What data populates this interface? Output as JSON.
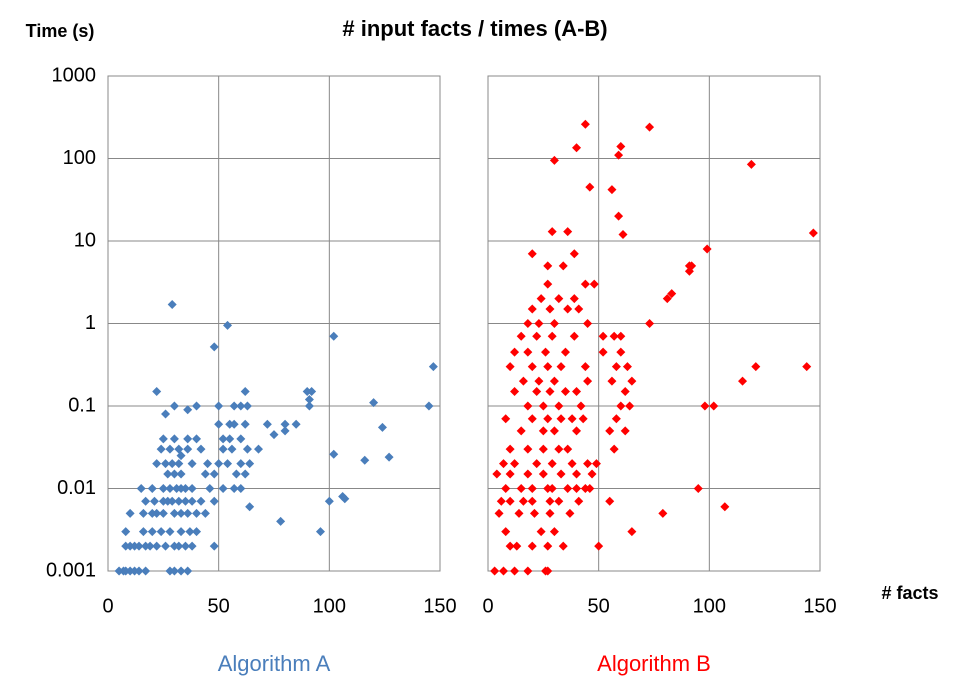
{
  "title": "# input facts / times (A-B)",
  "y_label": "Time (s)",
  "x_label": "# facts",
  "chart_data": [
    {
      "type": "scatter",
      "title": "Algorithm A",
      "color": "#4a7ebb",
      "log_y": true,
      "grid": true,
      "xlim": [
        0,
        150
      ],
      "xticks": [
        0,
        50,
        100,
        150
      ],
      "ylim": [
        0.001,
        1000
      ],
      "yticks": [
        0.001,
        0.01,
        0.1,
        1,
        10,
        100,
        1000
      ],
      "x": [
        5,
        7,
        8,
        10,
        12,
        14,
        17,
        28,
        30,
        33,
        36,
        8,
        10,
        12,
        14,
        17,
        19,
        22,
        26,
        30,
        32,
        35,
        38,
        48,
        8,
        16,
        20,
        24,
        28,
        33,
        37,
        40,
        10,
        16,
        20,
        22,
        25,
        30,
        33,
        36,
        40,
        44,
        17,
        21,
        25,
        27,
        29,
        32,
        35,
        38,
        42,
        48,
        15,
        20,
        25,
        28,
        31,
        33,
        35,
        38,
        46,
        52,
        57,
        60,
        27,
        30,
        33,
        44,
        48,
        58,
        62,
        22,
        26,
        29,
        32,
        38,
        45,
        50,
        54,
        60,
        64,
        24,
        28,
        32,
        36,
        42,
        52,
        56,
        63,
        68,
        25,
        30,
        36,
        40,
        52,
        55,
        60,
        50,
        55,
        57,
        62,
        72,
        80,
        85,
        30,
        40,
        50,
        57,
        60,
        63,
        91,
        22,
        62,
        90,
        29,
        54,
        48,
        102,
        147,
        92,
        91,
        120,
        145,
        124,
        102,
        116,
        127,
        106,
        107,
        100,
        96,
        78,
        64,
        75,
        80,
        26,
        36,
        33
      ],
      "values": [
        0.001,
        0.001,
        0.001,
        0.001,
        0.001,
        0.001,
        0.001,
        0.001,
        0.001,
        0.001,
        0.001,
        0.002,
        0.002,
        0.002,
        0.002,
        0.002,
        0.002,
        0.002,
        0.002,
        0.002,
        0.002,
        0.002,
        0.002,
        0.002,
        0.003,
        0.003,
        0.003,
        0.003,
        0.003,
        0.003,
        0.003,
        0.003,
        0.005,
        0.005,
        0.005,
        0.005,
        0.005,
        0.005,
        0.005,
        0.005,
        0.005,
        0.005,
        0.007,
        0.007,
        0.007,
        0.007,
        0.007,
        0.007,
        0.007,
        0.007,
        0.007,
        0.007,
        0.01,
        0.01,
        0.01,
        0.01,
        0.01,
        0.01,
        0.01,
        0.01,
        0.01,
        0.01,
        0.01,
        0.01,
        0.015,
        0.015,
        0.015,
        0.015,
        0.015,
        0.015,
        0.015,
        0.02,
        0.02,
        0.02,
        0.02,
        0.02,
        0.02,
        0.02,
        0.02,
        0.02,
        0.02,
        0.03,
        0.03,
        0.03,
        0.03,
        0.03,
        0.03,
        0.03,
        0.03,
        0.03,
        0.04,
        0.04,
        0.04,
        0.04,
        0.04,
        0.04,
        0.04,
        0.06,
        0.06,
        0.06,
        0.06,
        0.06,
        0.06,
        0.06,
        0.1,
        0.1,
        0.1,
        0.1,
        0.1,
        0.1,
        0.1,
        0.15,
        0.15,
        0.15,
        1.7,
        0.95,
        0.52,
        0.7,
        0.3,
        0.15,
        0.12,
        0.11,
        0.1,
        0.055,
        0.026,
        0.022,
        0.024,
        0.008,
        0.0075,
        0.007,
        0.003,
        0.004,
        0.006,
        0.045,
        0.05,
        0.08,
        0.09,
        0.025
      ]
    },
    {
      "type": "scatter",
      "title": "Algorithm B",
      "color": "#ff0000",
      "log_y": true,
      "grid": true,
      "sharey": true,
      "xlim": [
        0,
        150
      ],
      "xticks": [
        0,
        50,
        100,
        150
      ],
      "ylim": [
        0.001,
        1000
      ],
      "x": [
        3,
        7,
        12,
        18,
        26,
        27,
        10,
        13,
        20,
        27,
        34,
        50,
        8,
        24,
        30,
        65,
        5,
        14,
        21,
        28,
        37,
        79,
        6,
        10,
        16,
        20,
        28,
        32,
        41,
        55,
        8,
        15,
        20,
        27,
        29,
        36,
        40,
        44,
        46,
        95,
        4,
        10,
        18,
        25,
        33,
        40,
        47,
        7,
        12,
        22,
        29,
        38,
        45,
        49,
        10,
        18,
        25,
        32,
        36,
        57,
        15,
        25,
        30,
        40,
        55,
        62,
        8,
        20,
        27,
        33,
        38,
        43,
        58,
        18,
        25,
        32,
        42,
        60,
        64,
        98,
        102,
        12,
        22,
        28,
        35,
        40,
        62,
        16,
        23,
        30,
        45,
        56,
        65,
        115,
        10,
        20,
        27,
        33,
        44,
        58,
        63,
        121,
        144,
        12,
        18,
        26,
        35,
        52,
        60,
        15,
        22,
        29,
        39,
        52,
        57,
        60,
        18,
        23,
        30,
        45,
        73,
        20,
        28,
        36,
        41,
        24,
        32,
        39,
        81,
        27,
        44,
        48,
        27,
        34,
        91,
        92,
        20,
        39,
        29,
        36,
        59,
        61,
        147,
        99,
        30,
        40,
        44,
        73,
        60,
        59,
        46,
        56,
        119,
        83,
        91,
        107
      ],
      "values": [
        0.001,
        0.001,
        0.001,
        0.001,
        0.001,
        0.001,
        0.002,
        0.002,
        0.002,
        0.002,
        0.002,
        0.002,
        0.003,
        0.003,
        0.003,
        0.003,
        0.005,
        0.005,
        0.005,
        0.005,
        0.005,
        0.005,
        0.007,
        0.007,
        0.007,
        0.007,
        0.007,
        0.007,
        0.007,
        0.007,
        0.01,
        0.01,
        0.01,
        0.01,
        0.01,
        0.01,
        0.01,
        0.01,
        0.01,
        0.01,
        0.015,
        0.015,
        0.015,
        0.015,
        0.015,
        0.015,
        0.015,
        0.02,
        0.02,
        0.02,
        0.02,
        0.02,
        0.02,
        0.02,
        0.03,
        0.03,
        0.03,
        0.03,
        0.03,
        0.03,
        0.05,
        0.05,
        0.05,
        0.05,
        0.05,
        0.05,
        0.07,
        0.07,
        0.07,
        0.07,
        0.07,
        0.07,
        0.07,
        0.1,
        0.1,
        0.1,
        0.1,
        0.1,
        0.1,
        0.1,
        0.1,
        0.15,
        0.15,
        0.15,
        0.15,
        0.15,
        0.15,
        0.2,
        0.2,
        0.2,
        0.2,
        0.2,
        0.2,
        0.2,
        0.3,
        0.3,
        0.3,
        0.3,
        0.3,
        0.3,
        0.3,
        0.3,
        0.3,
        0.45,
        0.45,
        0.45,
        0.45,
        0.45,
        0.45,
        0.7,
        0.7,
        0.7,
        0.7,
        0.7,
        0.7,
        0.7,
        1,
        1,
        1,
        1,
        1,
        1.5,
        1.5,
        1.5,
        1.5,
        2,
        2,
        2,
        2,
        3,
        3,
        3,
        5,
        5,
        5,
        5,
        7,
        7,
        13,
        13,
        20,
        12,
        12.5,
        8,
        95,
        135,
        260,
        240,
        140,
        110,
        45,
        42,
        85,
        2.3,
        4.3,
        0.006
      ]
    }
  ]
}
